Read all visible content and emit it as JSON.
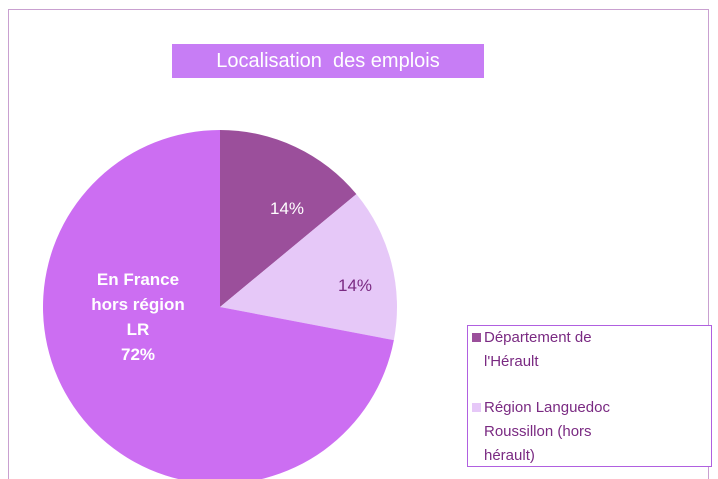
{
  "chart_data": {
    "type": "pie",
    "title": "Localisation  des emplois",
    "categories": [
      "Département de l'Hérault",
      "Région Languedoc Roussillon (hors hérault)",
      "En France hors région LR"
    ],
    "values": [
      14,
      14,
      72
    ],
    "value_labels": [
      "14%",
      "14%",
      "72%"
    ],
    "colors": [
      "#9b4f9b",
      "#e6c8f8",
      "#cc6ef2"
    ]
  }
}
